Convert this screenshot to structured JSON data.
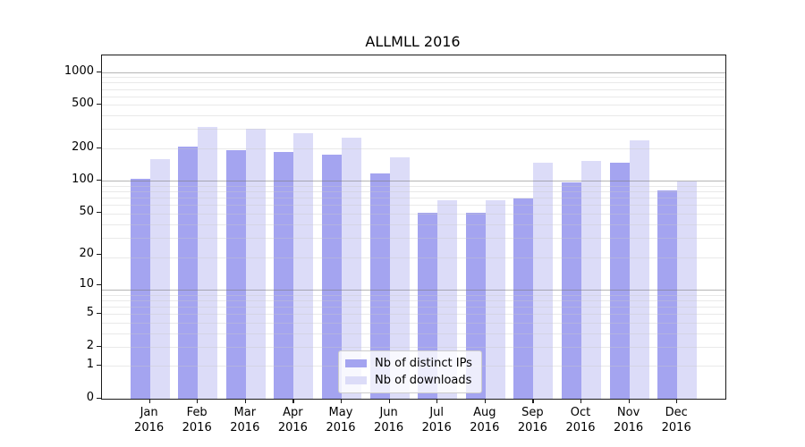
{
  "figure": {
    "title": "ALLMLL 2016"
  },
  "chart_data": {
    "type": "bar",
    "title": "ALLMLL 2016",
    "categories": [
      "Jan",
      "Feb",
      "Mar",
      "Apr",
      "May",
      "Jun",
      "Jul",
      "Aug",
      "Sep",
      "Oct",
      "Nov",
      "Dec"
    ],
    "category_year": "2016",
    "series": [
      {
        "name": "Nb of distinct IPs",
        "color": "#a4a4f0",
        "values": [
          104,
          204,
          190,
          182,
          175,
          116,
          50,
          50,
          68,
          96,
          146,
          81
        ]
      },
      {
        "name": "Nb of downloads",
        "color": "#dcdcf8",
        "values": [
          158,
          315,
          303,
          276,
          250,
          165,
          65,
          66,
          145,
          151,
          233,
          98
        ]
      }
    ],
    "xlabel": "",
    "ylabel": "",
    "yscale": "log(1+v)",
    "yticks": [
      1000,
      500,
      200,
      100,
      50,
      20,
      10,
      5,
      2,
      1,
      0
    ],
    "ylim": [
      0,
      1400
    ],
    "grid": "on",
    "legend_position": "lower center",
    "colors": {
      "major_grid": "#b9b9b9",
      "minor_grid": "#e9e9e9",
      "spine": "#1a1a1a",
      "background": "#ffffff"
    }
  }
}
